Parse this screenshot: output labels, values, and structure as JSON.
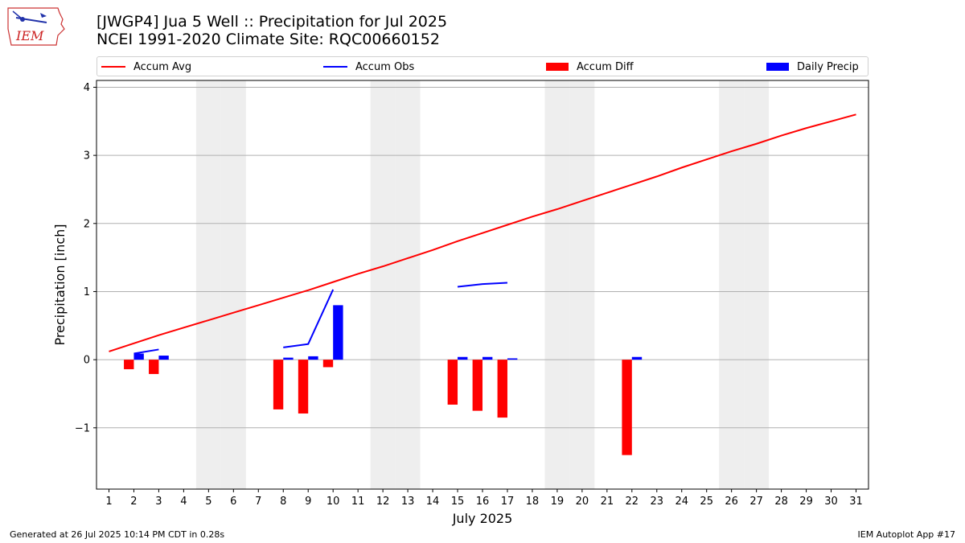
{
  "header": {
    "logo_text": "IEM",
    "title_line1": "[JWGP4] Jua 5 Well :: Precipitation for Jul 2025",
    "title_line2": "NCEI 1991-2020 Climate Site: RQC00660152"
  },
  "legend": {
    "accum_avg": "Accum Avg",
    "accum_obs": "Accum Obs",
    "accum_diff": "Accum Diff",
    "daily_precip": "Daily Precip"
  },
  "footer": {
    "generated": "Generated at 26 Jul 2025 10:14 PM CDT in 0.28s",
    "app": "IEM Autoplot App #17"
  },
  "colors": {
    "avg": "#ff0000",
    "obs": "#0000ff",
    "diff": "#ff0000",
    "daily": "#0000ff",
    "weekend": "#eeeeee",
    "grid": "#b0b0b0"
  },
  "chart_data": {
    "type": "bar",
    "xlabel": "July 2025",
    "ylabel": "Precipitation [inch]",
    "xlim": [
      0.5,
      31.5
    ],
    "ylim": [
      -1.9,
      4.1
    ],
    "yticks": [
      -1,
      0,
      1,
      2,
      3,
      4
    ],
    "ytick_labels": [
      "−1",
      "0",
      "1",
      "2",
      "3",
      "4"
    ],
    "xticks": [
      1,
      2,
      3,
      4,
      5,
      6,
      7,
      8,
      9,
      10,
      11,
      12,
      13,
      14,
      15,
      16,
      17,
      18,
      19,
      20,
      21,
      22,
      23,
      24,
      25,
      26,
      27,
      28,
      29,
      30,
      31
    ],
    "grid": "horizontal",
    "legend_position": "top",
    "weekend_days": [
      5,
      6,
      12,
      13,
      19,
      20,
      26,
      27
    ],
    "accum_avg": {
      "name": "Accum Avg",
      "days": [
        1,
        2,
        3,
        4,
        5,
        6,
        7,
        8,
        9,
        10,
        11,
        12,
        13,
        14,
        15,
        16,
        17,
        18,
        19,
        20,
        21,
        22,
        23,
        24,
        25,
        26,
        27,
        28,
        29,
        30,
        31
      ],
      "values": [
        0.12,
        0.24,
        0.36,
        0.47,
        0.58,
        0.69,
        0.8,
        0.91,
        1.02,
        1.14,
        1.26,
        1.37,
        1.49,
        1.61,
        1.74,
        1.86,
        1.98,
        2.1,
        2.21,
        2.33,
        2.45,
        2.57,
        2.69,
        2.82,
        2.94,
        3.06,
        3.17,
        3.29,
        3.4,
        3.5,
        3.6
      ]
    },
    "accum_obs": {
      "name": "Accum Obs",
      "segments": [
        {
          "days": [
            2,
            3
          ],
          "values": [
            0.09,
            0.15
          ]
        },
        {
          "days": [
            8,
            9,
            10
          ],
          "values": [
            0.18,
            0.23,
            1.03
          ]
        },
        {
          "days": [
            15,
            16,
            17
          ],
          "values": [
            1.07,
            1.11,
            1.13
          ]
        }
      ]
    },
    "accum_diff": {
      "name": "Accum Diff",
      "days": [
        2,
        3,
        8,
        9,
        10,
        15,
        16,
        17,
        22
      ],
      "values": [
        -0.14,
        -0.21,
        -0.73,
        -0.79,
        -0.11,
        -0.66,
        -0.75,
        -0.85,
        -1.4
      ]
    },
    "daily_precip": {
      "name": "Daily Precip",
      "days": [
        2,
        3,
        8,
        9,
        10,
        15,
        16,
        17,
        22
      ],
      "values": [
        0.09,
        0.06,
        0.03,
        0.05,
        0.8,
        0.04,
        0.04,
        0.02,
        0.04
      ]
    }
  }
}
